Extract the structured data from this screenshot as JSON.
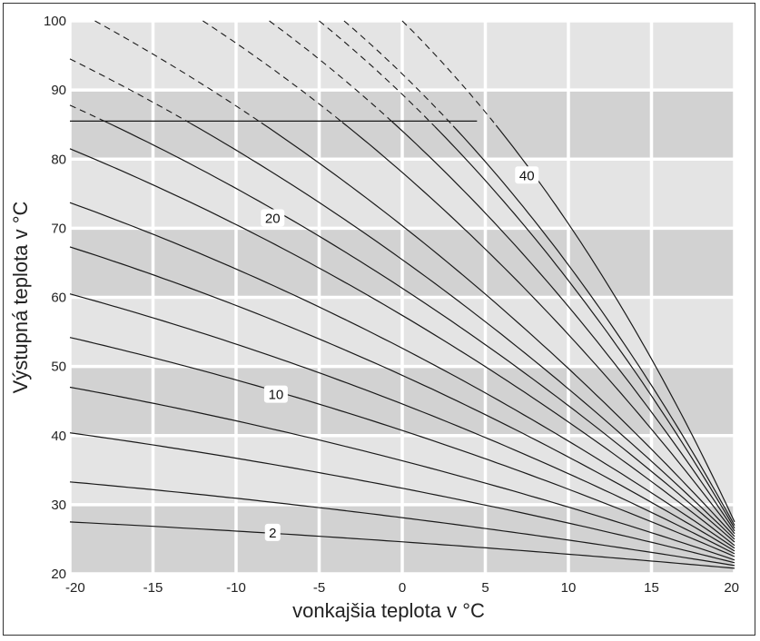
{
  "chart_data": {
    "type": "line",
    "title": "",
    "xlabel": "vonkajšia teplota v °C",
    "ylabel": "Výstupná teplota v °C",
    "xlim": [
      -20,
      20
    ],
    "ylim": [
      20,
      100
    ],
    "x_ticks": [
      "-20",
      "-15",
      "-10",
      "-5",
      "0",
      "5",
      "10",
      "15",
      "20"
    ],
    "y_ticks": [
      "20",
      "30",
      "40",
      "50",
      "60",
      "70",
      "80",
      "90",
      "100"
    ],
    "grid": true,
    "colors": {
      "band_light": "#e4e4e4",
      "band_dark": "#d2d2d2",
      "grid": "#ffffff",
      "curve": "#1a1a1a",
      "label_bg": "#ffffff"
    },
    "max_flow_limit": {
      "y": 85.5,
      "x_start": -20,
      "x_end": 4.5
    },
    "curve_end": {
      "x": 20,
      "y_values": [
        20.8,
        21.2,
        21.6,
        22.0,
        22.5,
        22.9,
        23.3,
        23.7,
        24.1,
        24.6,
        25.0,
        25.4,
        25.8,
        26.2,
        26.6,
        27.0,
        27.5
      ]
    },
    "series": [
      {
        "y_at_minus20": 27.5
      },
      {
        "y_at_minus20": 33.3
      },
      {
        "y_at_minus20": 40.4
      },
      {
        "y_at_minus20": 47.0
      },
      {
        "y_at_minus20": 54.2
      },
      {
        "y_at_minus20": 60.5
      },
      {
        "y_at_minus20": 67.3
      },
      {
        "y_at_minus20": 73.7
      },
      {
        "y_at_minus20": 81.5
      },
      {
        "y_at_minus20": 87.8
      },
      {
        "y_at_minus20": 94.5
      },
      {
        "y_at_minus20": 100.0,
        "x_at_100": -18.5
      },
      {
        "y_at_minus20": 100.0,
        "x_at_100": -12.0
      },
      {
        "y_at_minus20": 100.0,
        "x_at_100": -8.0
      },
      {
        "y_at_minus20": 100.0,
        "x_at_100": -5.0
      },
      {
        "y_at_minus20": 100.0,
        "x_at_100": -3.5
      },
      {
        "y_at_minus20": 100.0,
        "x_at_100": 0.0
      }
    ],
    "annotations": [
      {
        "text": "2",
        "x": -7.8,
        "y": 26.0
      },
      {
        "text": "10",
        "x": -7.6,
        "y": 46.0
      },
      {
        "text": "20",
        "x": -7.8,
        "y": 71.5
      },
      {
        "text": "40",
        "x": 7.5,
        "y": 77.7
      }
    ]
  }
}
